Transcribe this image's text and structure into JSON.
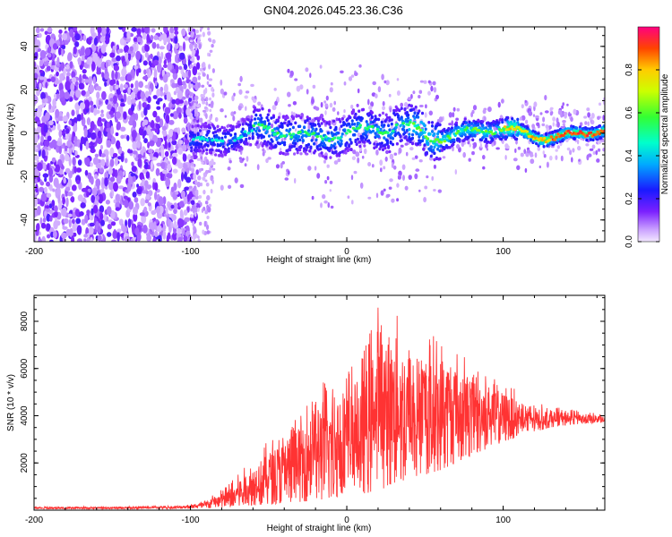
{
  "title": "GN04.2026.045.23.36.C36",
  "chart_data": [
    {
      "type": "heatmap",
      "xlabel": "Height of straight line (km)",
      "ylabel": "Frequency (Hz)",
      "xlim": [
        -200,
        165
      ],
      "ylim": [
        -50,
        49
      ],
      "xticks": [
        -200,
        -100,
        0,
        100
      ],
      "yticks": [
        -40,
        -20,
        0,
        20,
        40
      ],
      "colorbar": {
        "label": "Normalized spectral amplitude",
        "range": [
          0,
          1
        ],
        "ticks": [
          0.0,
          0.2,
          0.4,
          0.6,
          0.8
        ],
        "colormap": "rainbow (violet to red)"
      },
      "regions": [
        {
          "x_range": [
            -200,
            -100
          ],
          "description": "broadband noise, amplitude ~0.1-0.2"
        },
        {
          "x_range": [
            -100,
            165
          ],
          "description": "narrowband signal around 0 Hz, amplitude rising to ~0.9 toward 165 km"
        }
      ]
    },
    {
      "type": "line",
      "xlabel": "Height of straight line (km)",
      "ylabel": "SNR (10 * v/v)",
      "xlim": [
        -200,
        165
      ],
      "ylim": [
        0,
        9100
      ],
      "xticks": [
        -200,
        -100,
        0,
        100
      ],
      "yticks": [
        2000,
        4000,
        6000,
        8000
      ],
      "series": [
        {
          "name": "SNR",
          "color": "#ff3333",
          "envelope_x": [
            -200,
            -150,
            -110,
            -100,
            -90,
            -80,
            -70,
            -60,
            -50,
            -40,
            -30,
            -20,
            -10,
            0,
            10,
            20,
            30,
            40,
            50,
            60,
            70,
            80,
            90,
            100,
            110,
            120,
            130,
            140,
            150,
            160,
            165
          ],
          "envelope_low": [
            50,
            50,
            60,
            70,
            80,
            100,
            150,
            200,
            250,
            300,
            350,
            400,
            500,
            600,
            700,
            800,
            1100,
            1300,
            1500,
            1700,
            2000,
            2300,
            2600,
            2900,
            3100,
            3300,
            3500,
            3600,
            3650,
            3700,
            3700
          ],
          "envelope_high": [
            150,
            150,
            200,
            250,
            450,
            900,
            1500,
            2200,
            3000,
            3600,
            4300,
            5600,
            5900,
            6400,
            6800,
            9000,
            8500,
            8000,
            7700,
            7600,
            7000,
            6500,
            6000,
            5500,
            5000,
            4600,
            4400,
            4300,
            4200,
            4100,
            4000
          ]
        }
      ]
    }
  ]
}
